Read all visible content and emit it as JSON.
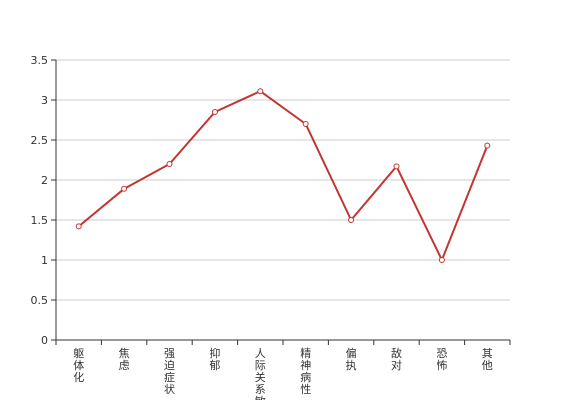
{
  "chart_data": {
    "type": "line",
    "categories": [
      "躯体化",
      "焦虑",
      "强迫症状",
      "抑郁",
      "人际关系敏感",
      "精神病性",
      "偏执",
      "敌对",
      "恐怖",
      "其他"
    ],
    "series": [
      {
        "values": [
          1.42,
          1.89,
          2.2,
          2.85,
          3.11,
          2.7,
          1.5,
          2.17,
          1.0,
          2.43
        ]
      }
    ],
    "title": "",
    "xlabel": "",
    "ylabel": "",
    "ylim": [
      0,
      3.5
    ],
    "yticks": [
      0,
      0.5,
      1,
      1.5,
      2,
      2.5,
      3,
      3.5
    ],
    "ytick_labels": [
      "0",
      "0.5",
      "1",
      "1.5",
      "2",
      "2.5",
      "3",
      "3.5"
    ],
    "grid": true,
    "legend": "none",
    "colors": {
      "line": "#c23531",
      "marker_fill": "#ffffff",
      "grid": "#cccccc",
      "axis": "#333333"
    }
  }
}
